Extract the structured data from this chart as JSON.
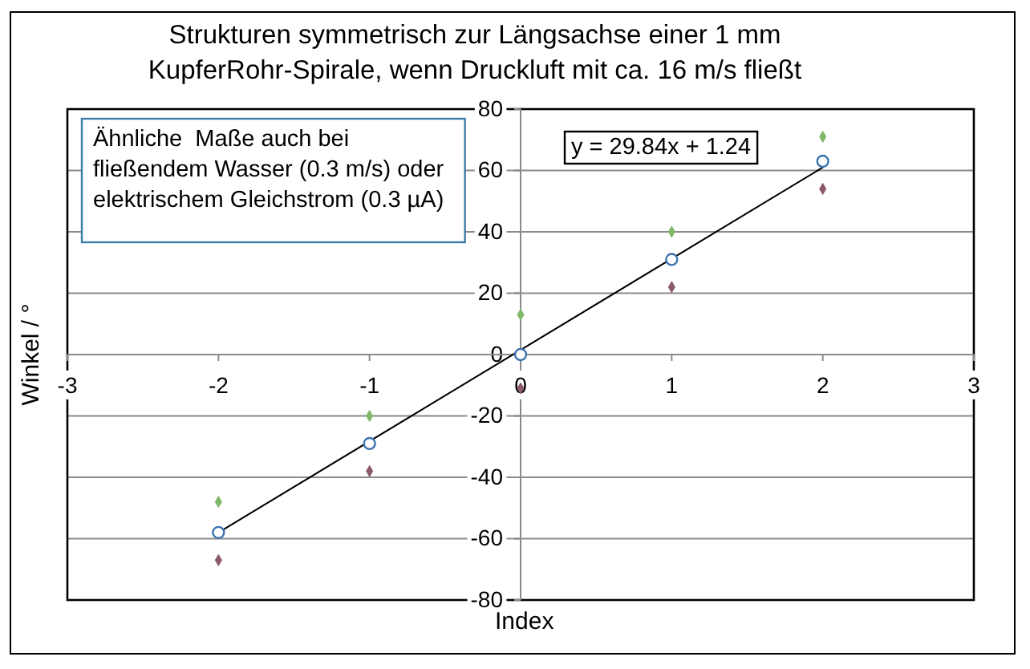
{
  "chart_data": {
    "type": "scatter",
    "title": "Strukturen symmetrisch zur Längsachse einer 1 mm\nKupferRohr-Spirale, wenn Druckluft mit ca. 16 m/s fließt",
    "xlabel": "Index",
    "ylabel": "Winkel / °",
    "annotations": [
      "Ähnliche  Maße auch bei\nfließendem Wasser (0.3 m/s) oder\nelektrischem Gleichstrom (0.3 µA)",
      "y = 29.84x + 1.24"
    ],
    "x": [
      -2,
      -1,
      0,
      1,
      2
    ],
    "series": [
      {
        "color": "#3c74b0",
        "marker": "circle",
        "values": [
          -58,
          -29,
          0,
          31,
          63
        ]
      },
      {
        "color": "#7fb868",
        "marker": "diamond",
        "values": [
          -48,
          -20,
          13,
          40,
          71
        ]
      },
      {
        "color": "#8a5a66",
        "marker": "diamond",
        "values": [
          -67,
          -38,
          -11,
          22,
          54
        ]
      },
      {
        "type": "line",
        "x": [
          -2,
          2
        ],
        "values": [
          -58,
          61
        ],
        "color": "#000000",
        "marker": "none"
      }
    ],
    "xlim": [
      -3,
      3
    ],
    "ylim": [
      -80,
      80
    ],
    "xticks": [
      -3,
      -2,
      -1,
      0,
      1,
      2,
      3
    ],
    "yticks": [
      -80,
      -60,
      -40,
      -20,
      0,
      20,
      40,
      60,
      80
    ],
    "grid": "y"
  }
}
